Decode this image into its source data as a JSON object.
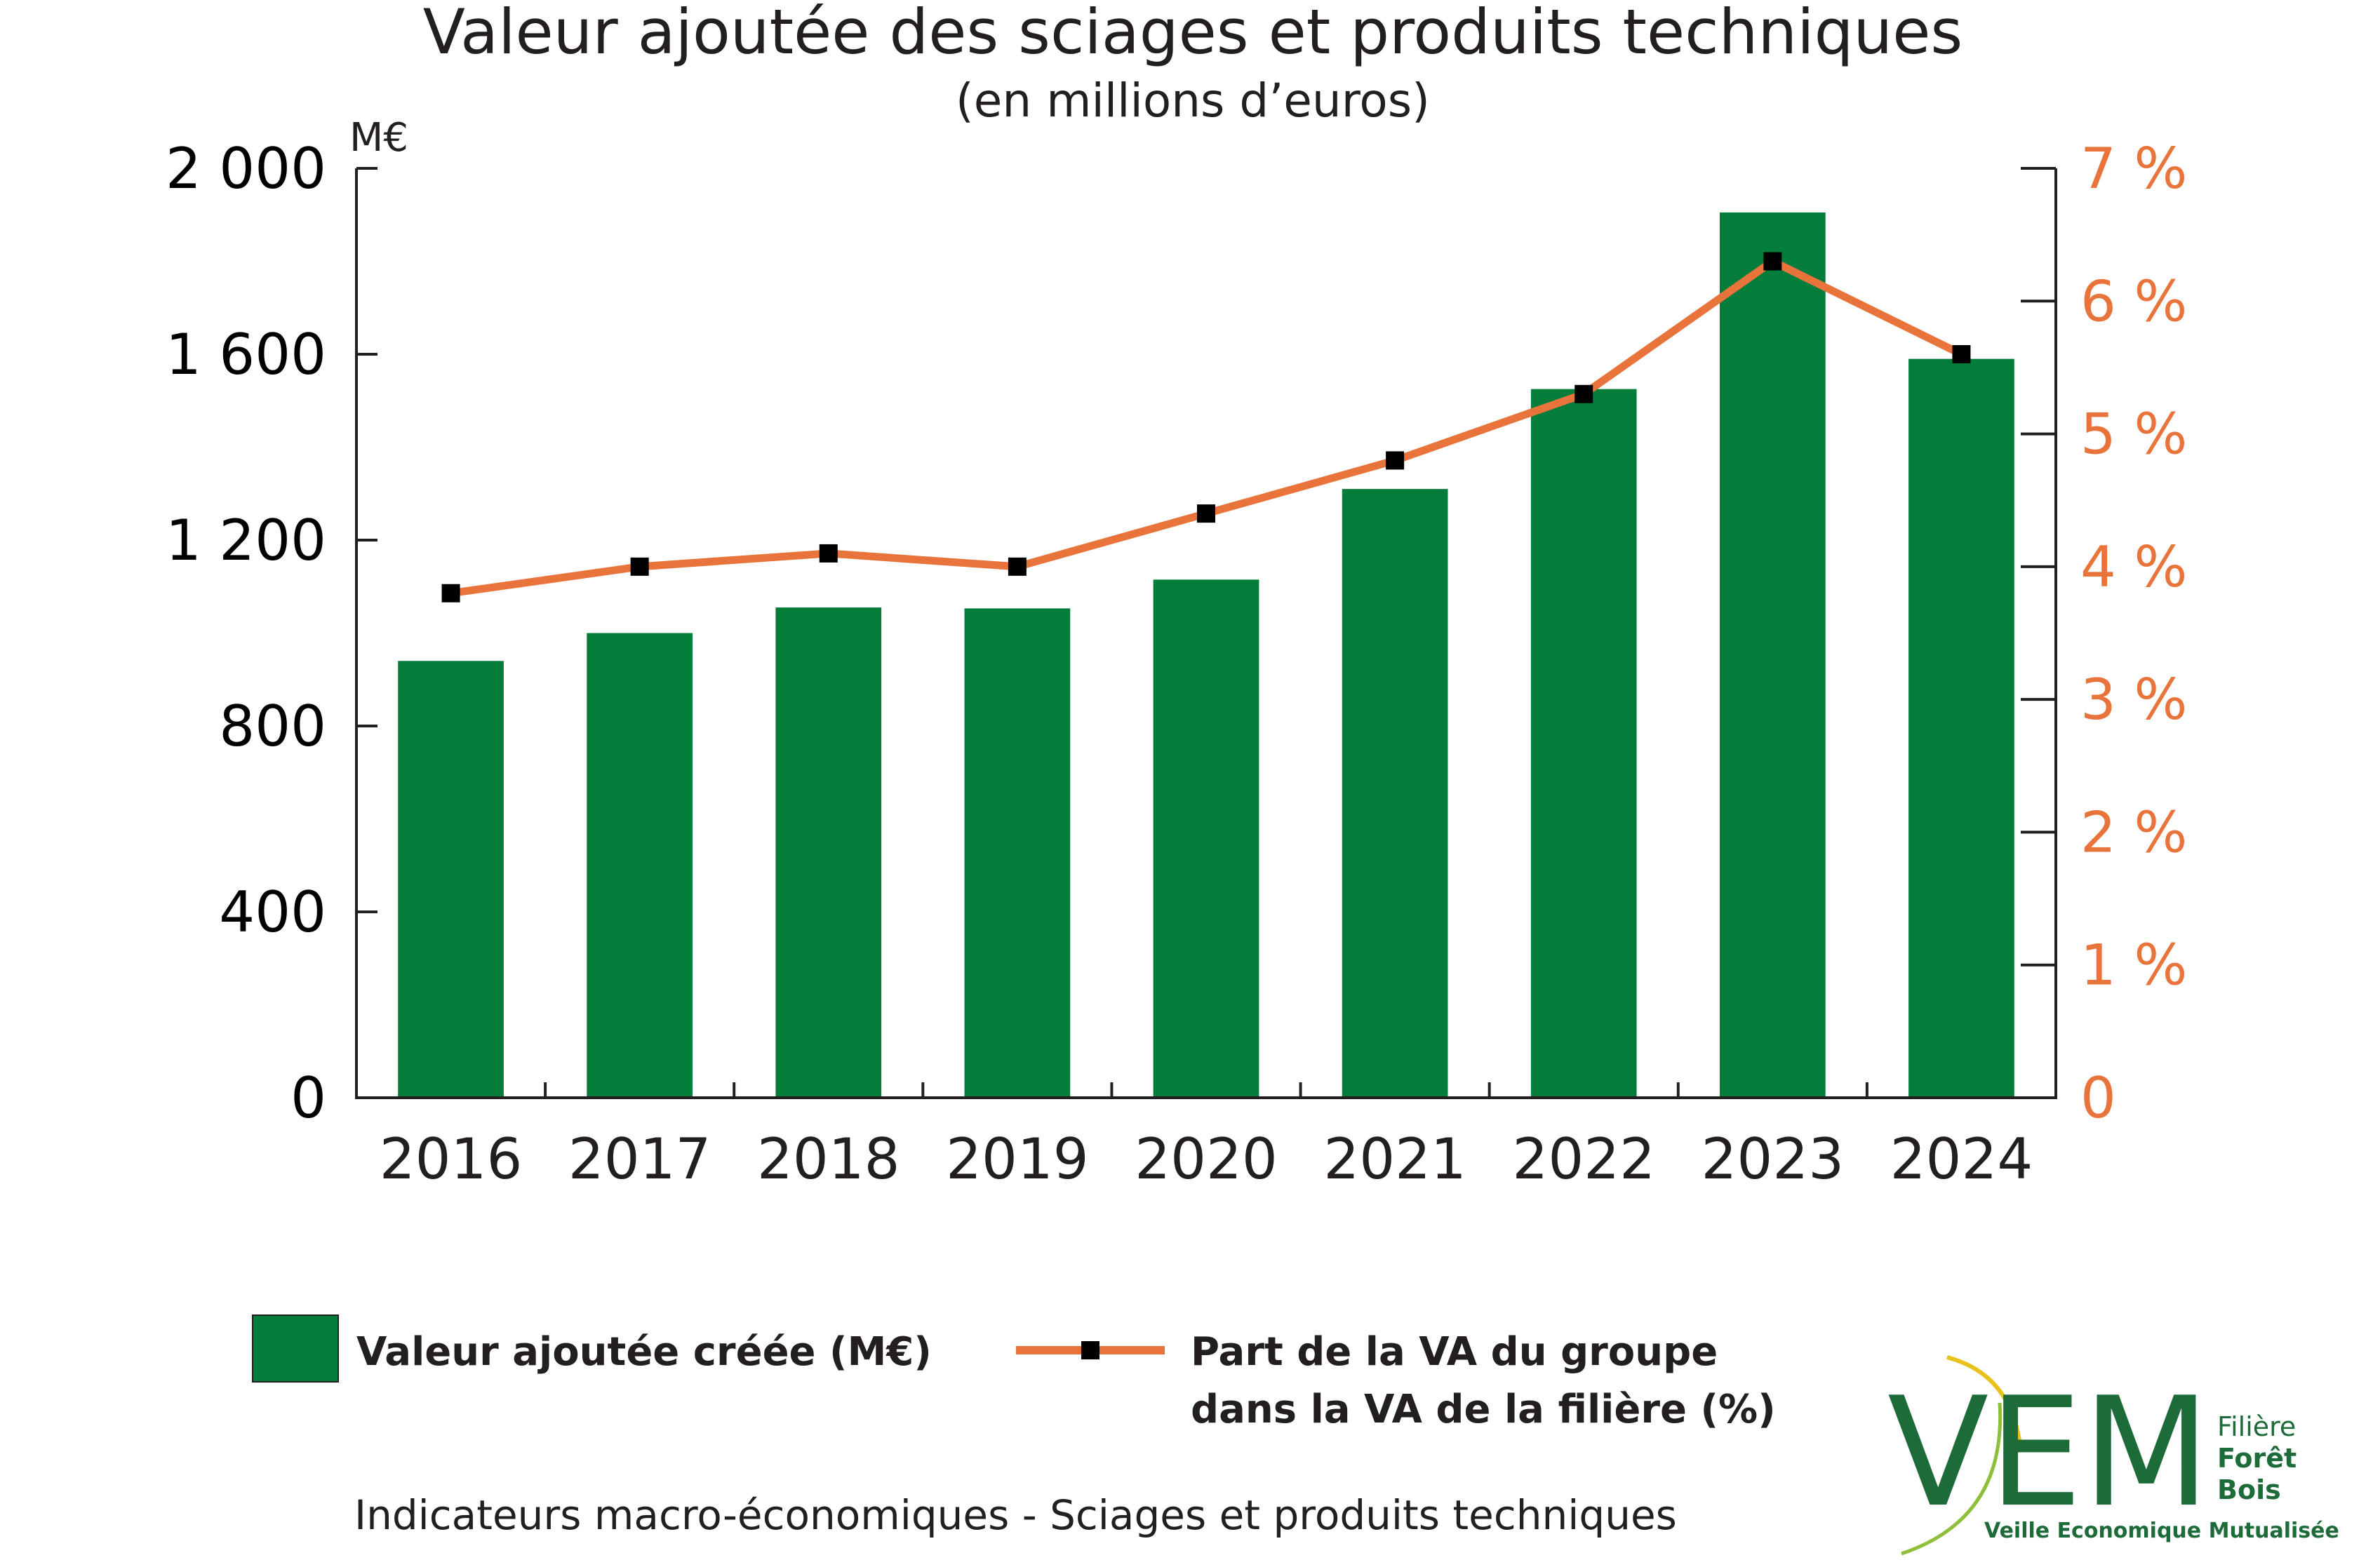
{
  "chart_data": {
    "type": "bar",
    "title": "Valeur ajoutée des sciages et produits techniques",
    "subtitle": "(en millions d’euros)",
    "ylabel": "M€",
    "ylim": [
      0,
      2000
    ],
    "y2lim": [
      0,
      7
    ],
    "y_ticks": [
      "0",
      "400",
      "800",
      "1 200",
      "1 600",
      "2 000"
    ],
    "y2_ticks": [
      "0",
      "1 %",
      "2 %",
      "3 %",
      "4 %",
      "5 %",
      "6 %",
      "7 %"
    ],
    "categories": [
      "2016",
      "2017",
      "2018",
      "2019",
      "2020",
      "2021",
      "2022",
      "2023",
      "2024"
    ],
    "series": [
      {
        "name": "Valeur ajoutée créée (M€)",
        "type": "bar",
        "axis": "left",
        "values": [
          940,
          1000,
          1055,
          1053,
          1115,
          1310,
          1525,
          1905,
          1590
        ]
      },
      {
        "name": "Part de la VA du groupe dans la VA de la filière (%)",
        "type": "line",
        "axis": "right",
        "values": [
          3.8,
          4.0,
          4.1,
          4.0,
          4.4,
          4.8,
          5.3,
          6.3,
          5.6
        ]
      }
    ],
    "legend": {
      "position": "bottom",
      "bar_label": "Valeur ajoutée créée (M€)",
      "line_label_1": "Part de la VA du groupe",
      "line_label_2": "dans la VA de la filière (%)"
    },
    "grid": false
  },
  "colors": {
    "bar": "#047d3a",
    "line": "#e8743b",
    "marker": "#000000",
    "right_axis_text": "#e8743b",
    "logo_green": "#1e6b3a",
    "logo_yellow": "#e8c21a"
  },
  "footer": "Indicateurs macro-économiques - Sciages et produits techniques",
  "logo": {
    "letters": "VEM",
    "line1": "Filière",
    "line2": "Forêt",
    "line3": "Bois",
    "tagline": "Veille Economique Mutualisée"
  }
}
